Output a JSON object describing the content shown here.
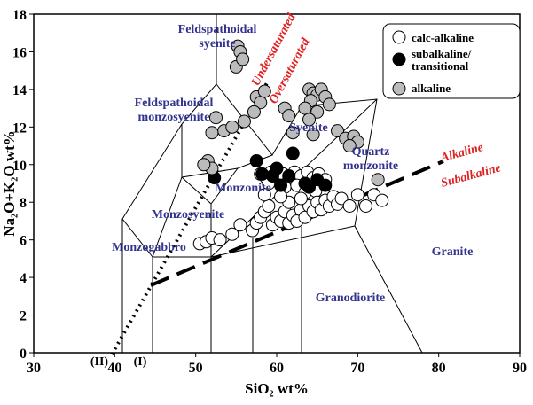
{
  "chart_data": {
    "type": "scatter",
    "xlabel": "SiO₂ wt%",
    "ylabel": "Na₂O+K₂O wt%",
    "xlim": [
      30,
      90
    ],
    "ylim": [
      0,
      18
    ],
    "xticks": [
      30,
      40,
      50,
      60,
      70,
      80,
      90
    ],
    "yticks": [
      0,
      2,
      4,
      6,
      8,
      10,
      12,
      14,
      16,
      18
    ],
    "legend": "upper right",
    "series": [
      {
        "name": "calc-alkaline",
        "color": "#ffffff",
        "x": [
          58.0,
          58.7,
          59.3,
          60.0,
          60.8,
          61.5,
          62.2,
          63.0,
          63.8,
          64.5,
          65.2,
          66.0,
          59.0,
          61.0,
          62.5,
          63.5,
          64.8,
          50.5,
          51.3,
          52.0,
          53.0,
          54.5,
          55.5,
          57.0,
          57.5,
          58.0,
          58.5,
          59.0,
          59.5,
          60.0,
          60.5,
          61.0,
          61.5,
          62.0,
          62.5,
          63.0,
          63.5,
          64.0,
          64.5,
          65.0,
          65.5,
          66.0,
          66.5,
          67.0,
          67.5,
          68.0,
          69.0,
          70.0,
          71.0,
          72.0,
          73.0,
          61.5,
          60.5,
          63.0,
          58.5
        ],
        "y": [
          9.5,
          9.3,
          9.6,
          9.3,
          9.5,
          9.2,
          9.6,
          9.4,
          9.6,
          9.3,
          9.5,
          9.2,
          9.0,
          8.8,
          8.9,
          8.5,
          8.6,
          5.8,
          5.9,
          6.1,
          6.0,
          6.3,
          6.8,
          6.5,
          6.9,
          7.2,
          7.5,
          7.8,
          6.8,
          7.2,
          7.0,
          7.5,
          6.9,
          7.3,
          7.0,
          7.6,
          7.2,
          7.8,
          7.5,
          8.0,
          7.6,
          8.1,
          7.8,
          8.3,
          7.9,
          8.2,
          7.8,
          8.4,
          7.8,
          8.4,
          8.1,
          8.0,
          8.3,
          8.2,
          8.4
        ]
      },
      {
        "name": "subalkaline/ transitional",
        "color": "#000000",
        "x": [
          52.3,
          57.5,
          58.2,
          60.0,
          62.0,
          61.5,
          63.5,
          64.0,
          66.0,
          60.5,
          59.5,
          65.0
        ],
        "y": [
          9.3,
          10.2,
          9.5,
          9.8,
          10.6,
          9.4,
          9.0,
          8.8,
          8.9,
          8.9,
          9.4,
          9.2
        ]
      },
      {
        "name": "alkaline",
        "color": "#bbbbbb",
        "x": [
          55.2,
          55.5,
          55.0,
          55.8,
          57.5,
          58.0,
          58.5,
          52.5,
          53.5,
          52.0,
          54.5,
          56.0,
          57.2,
          64.0,
          64.5,
          65.0,
          65.5,
          66.0,
          64.2,
          66.5,
          63.5,
          65.0,
          64.0,
          61.0,
          61.5,
          62.0,
          64.5,
          67.5,
          68.5,
          69.5,
          70.0,
          69.0,
          51.5,
          52.0,
          51.0,
          72.5
        ],
        "y": [
          16.3,
          16.0,
          15.2,
          15.6,
          13.6,
          13.3,
          13.9,
          12.5,
          11.8,
          11.7,
          12.0,
          12.3,
          12.8,
          14.0,
          13.8,
          13.7,
          14.0,
          13.6,
          13.4,
          13.2,
          13.0,
          12.8,
          12.4,
          13.0,
          12.6,
          11.7,
          11.6,
          11.8,
          11.4,
          11.5,
          11.2,
          11.0,
          10.2,
          9.8,
          10.0,
          9.2
        ]
      }
    ],
    "annotations": [
      "Feldspathoidal syenite",
      "Feldspathoidal monzosyenite",
      "Syenite",
      "Quartz monzonite",
      "Monzonite",
      "Monzosyenite",
      "Monzogabbro",
      "Granite",
      "Granodiorite",
      "Undersaturated",
      "Oversaturated",
      "Alkaline",
      "Subalkaline",
      "(II)",
      "(I)"
    ]
  }
}
